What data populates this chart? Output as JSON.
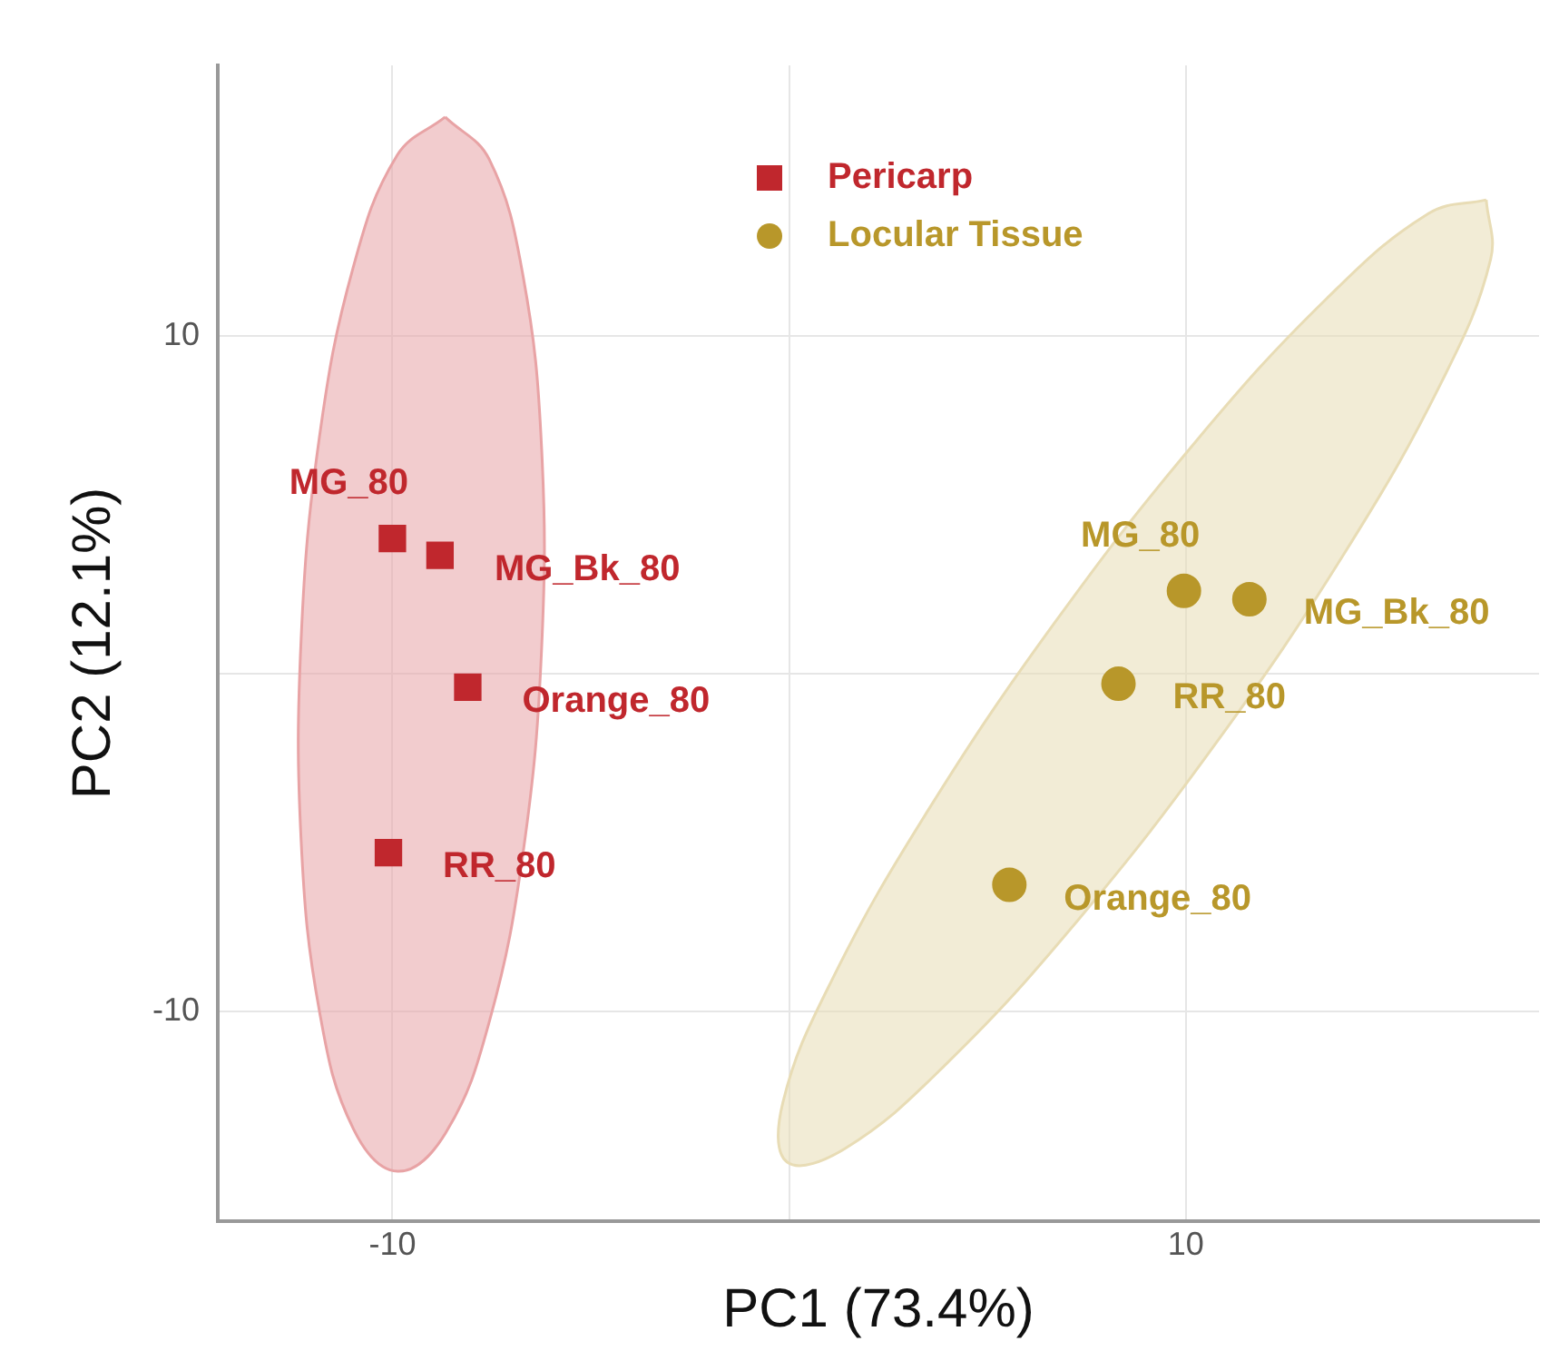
{
  "chart_data": {
    "type": "scatter",
    "xlabel": "PC1 (73.4%)",
    "ylabel": "PC2 (12.1%)",
    "xlim": [
      -14.4,
      18.9
    ],
    "ylim": [
      -16.2,
      18
    ],
    "xticks": [
      -10,
      {
        "value": 0,
        "label": null
      },
      10
    ],
    "yticks": [
      -10,
      {
        "value": 0,
        "label": null
      },
      10
    ],
    "grid": true,
    "legend": "top",
    "series": [
      {
        "type": "area",
        "color": "#e8a3a5",
        "x": [
          -8.67,
          -7.56,
          -6.71,
          -6.24,
          -6.24,
          -6.7,
          -7.55,
          -8.66,
          -9.87,
          -10.98,
          -11.83,
          -12.3,
          -12.3,
          -11.84,
          -10.99,
          -9.88,
          -8.67
        ],
        "values": [
          16.47,
          15.22,
          11.79,
          6.69,
          0.71,
          -5.25,
          -10.27,
          -13.6,
          -14.73,
          -13.48,
          -10.05,
          -4.95,
          1.03,
          6.99,
          12.01,
          15.34,
          16.47
        ]
      },
      {
        "type": "area",
        "color": "#e8dcb5",
        "x": [
          17.57,
          17.68,
          16.43,
          14.01,
          10.8,
          7.27,
          3.97,
          1.4,
          -0.05,
          -0.16,
          1.09,
          3.51,
          6.72,
          10.25,
          13.55,
          16.12,
          17.57
        ],
        "values": [
          14.02,
          12.26,
          8.6,
          3.59,
          -1.99,
          -7.31,
          -11.54,
          -14.06,
          -14.46,
          -12.7,
          -9.04,
          -4.03,
          1.55,
          6.87,
          11.1,
          13.62,
          14.02
        ]
      },
      {
        "type": "scatter",
        "name": "Pericarp",
        "color": "#c0272d",
        "marker": "square",
        "x": [
          -10.0,
          -8.8,
          -8.1,
          -10.1
        ],
        "values": [
          4.0,
          3.5,
          -0.4,
          -5.3
        ]
      },
      {
        "type": "scatter",
        "name": "Locular Tissue",
        "color": "#b8972a",
        "marker": "circle",
        "x": [
          9.95,
          11.6,
          8.3,
          5.55
        ],
        "values": [
          2.45,
          2.2,
          -0.3,
          -6.25
        ]
      }
    ],
    "annotations": [
      {
        "text": "MG_80",
        "x": -10.0,
        "y": 4.0
      },
      {
        "text": "MG_Bk_80",
        "x": -8.8,
        "y": 3.5
      },
      {
        "text": "Orange_80",
        "x": -8.1,
        "y": -0.4
      },
      {
        "text": "RR_80",
        "x": -10.1,
        "y": -5.3
      },
      {
        "text": "MG_80",
        "x": 9.95,
        "y": 2.45
      },
      {
        "text": "MG_Bk_80",
        "x": 11.6,
        "y": 2.2
      },
      {
        "text": "RR_80",
        "x": 8.3,
        "y": -0.3
      },
      {
        "text": "Orange_80",
        "x": 5.55,
        "y": -6.25
      }
    ]
  }
}
